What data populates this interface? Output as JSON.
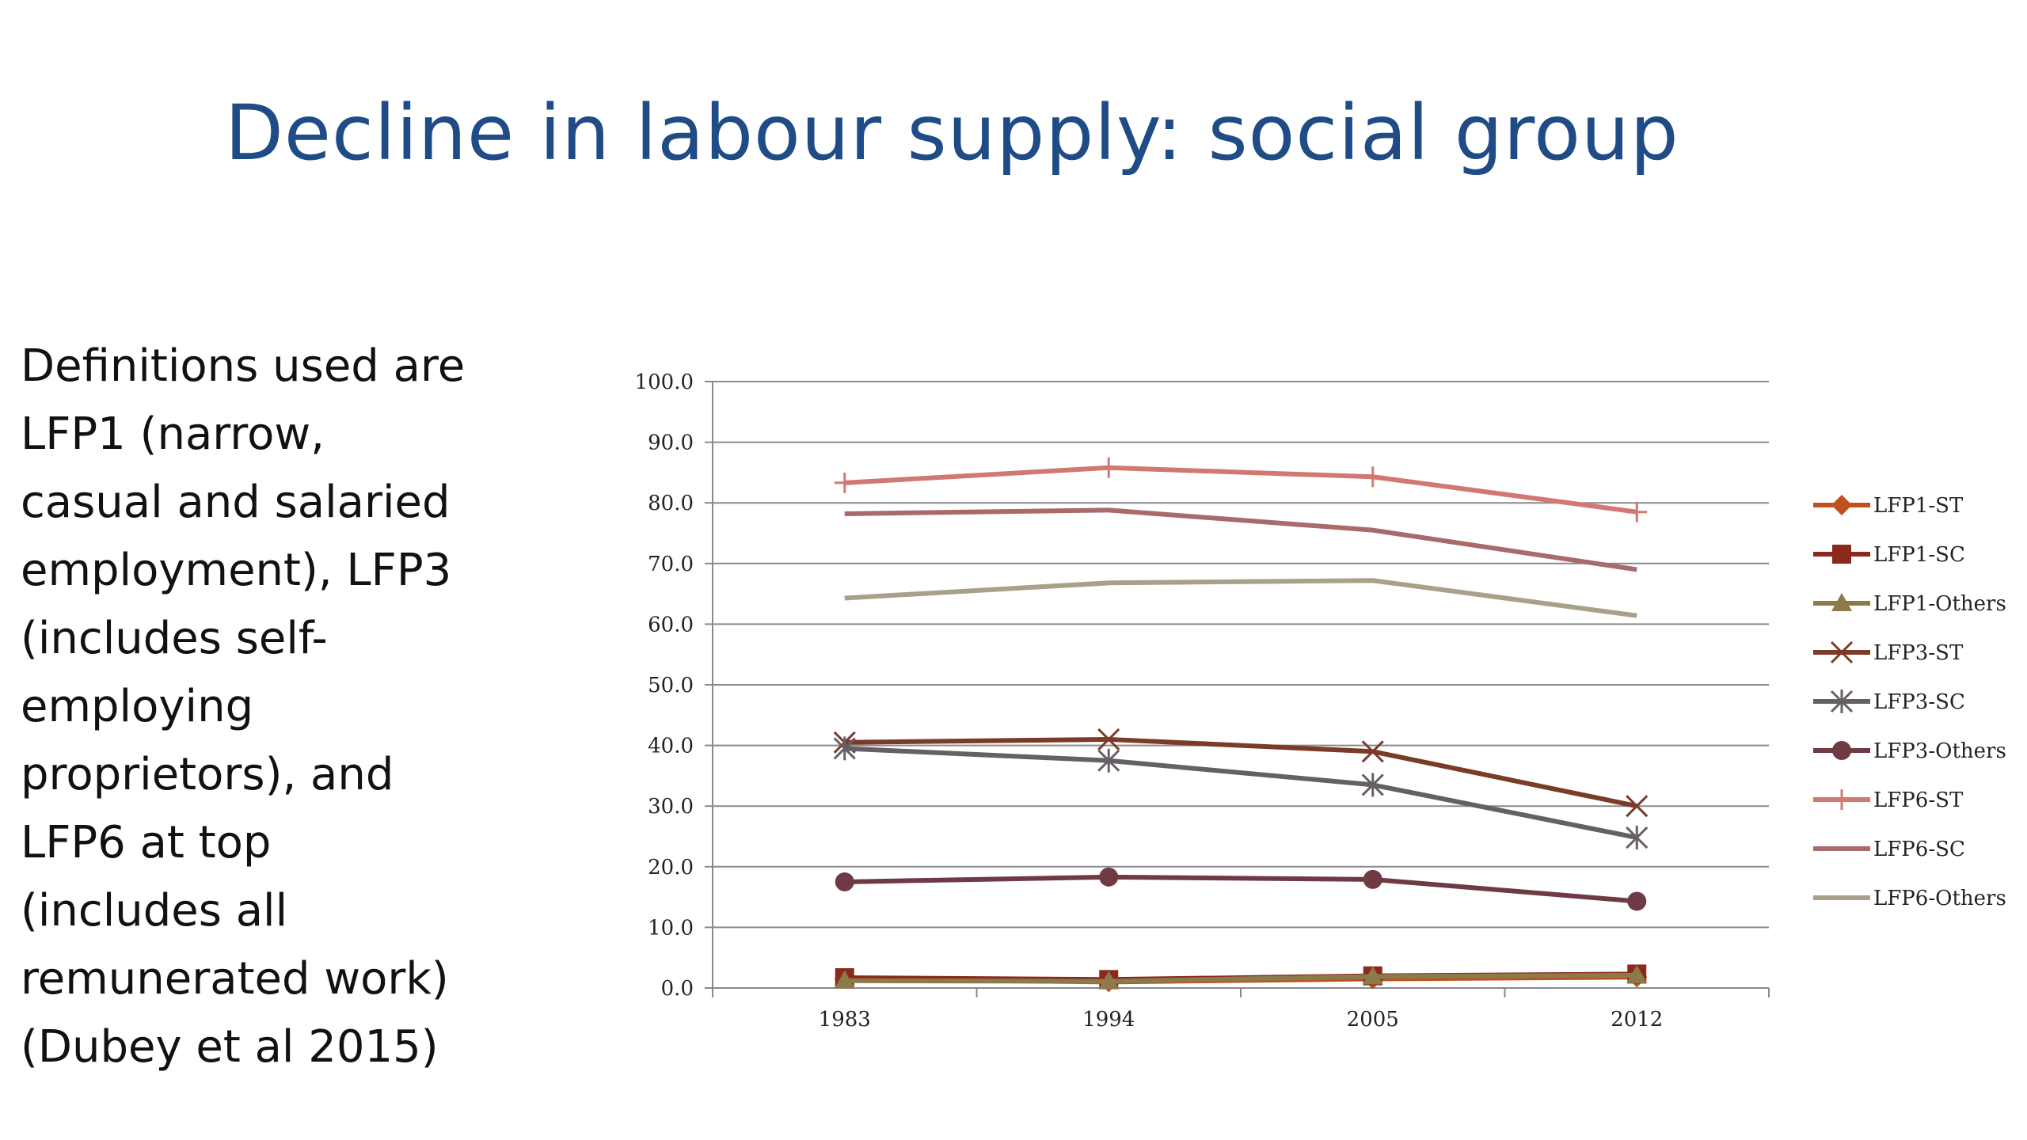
{
  "slide": {
    "title": "Decline in labour supply: social group",
    "body_lines": [
      "Definitions used are",
      "LFP1 (narrow,",
      "casual and salaried",
      "employment), LFP3",
      "(includes self-",
      "employing",
      "proprietors), and",
      "LFP6 at top",
      "(includes all",
      "remunerated work)",
      "(Dubey et al 2015)"
    ]
  },
  "chart_data": {
    "type": "line",
    "x": [
      "1983",
      "1994",
      "2005",
      "2012"
    ],
    "ylim": [
      0,
      100
    ],
    "yticks": [
      "0.0",
      "10.0",
      "20.0",
      "30.0",
      "40.0",
      "50.0",
      "60.0",
      "70.0",
      "80.0",
      "90.0",
      "100.0"
    ],
    "grid": true,
    "legend_position": "right",
    "series": [
      {
        "name": "LFP1-ST",
        "values": [
          1.5,
          1.0,
          1.5,
          1.8
        ],
        "color": "#c0501e",
        "marker": "diamond"
      },
      {
        "name": "LFP1-SC",
        "values": [
          1.7,
          1.4,
          2.0,
          2.3
        ],
        "color": "#8b2a1c",
        "marker": "square"
      },
      {
        "name": "LFP1-Others",
        "values": [
          1.2,
          1.1,
          1.9,
          2.1
        ],
        "color": "#8c7a4b",
        "marker": "triangle"
      },
      {
        "name": "LFP3-ST",
        "values": [
          40.5,
          41.0,
          39.0,
          30.0
        ],
        "color": "#7a3b28",
        "marker": "x"
      },
      {
        "name": "LFP3-SC",
        "values": [
          39.5,
          37.5,
          33.5,
          24.8
        ],
        "color": "#666066",
        "marker": "asterisk"
      },
      {
        "name": "LFP3-Others",
        "values": [
          17.5,
          18.3,
          17.9,
          14.3
        ],
        "color": "#6e3a44",
        "marker": "circle"
      },
      {
        "name": "LFP6-ST",
        "values": [
          83.3,
          85.8,
          84.3,
          78.5
        ],
        "color": "#d27872",
        "marker": "plus"
      },
      {
        "name": "LFP6-SC",
        "values": [
          78.2,
          78.8,
          75.5,
          69.0
        ],
        "color": "#a86a6a",
        "marker": "none"
      },
      {
        "name": "LFP6-Others",
        "values": [
          64.3,
          66.8,
          67.2,
          61.4
        ],
        "color": "#a8a08a",
        "marker": "none"
      }
    ]
  }
}
